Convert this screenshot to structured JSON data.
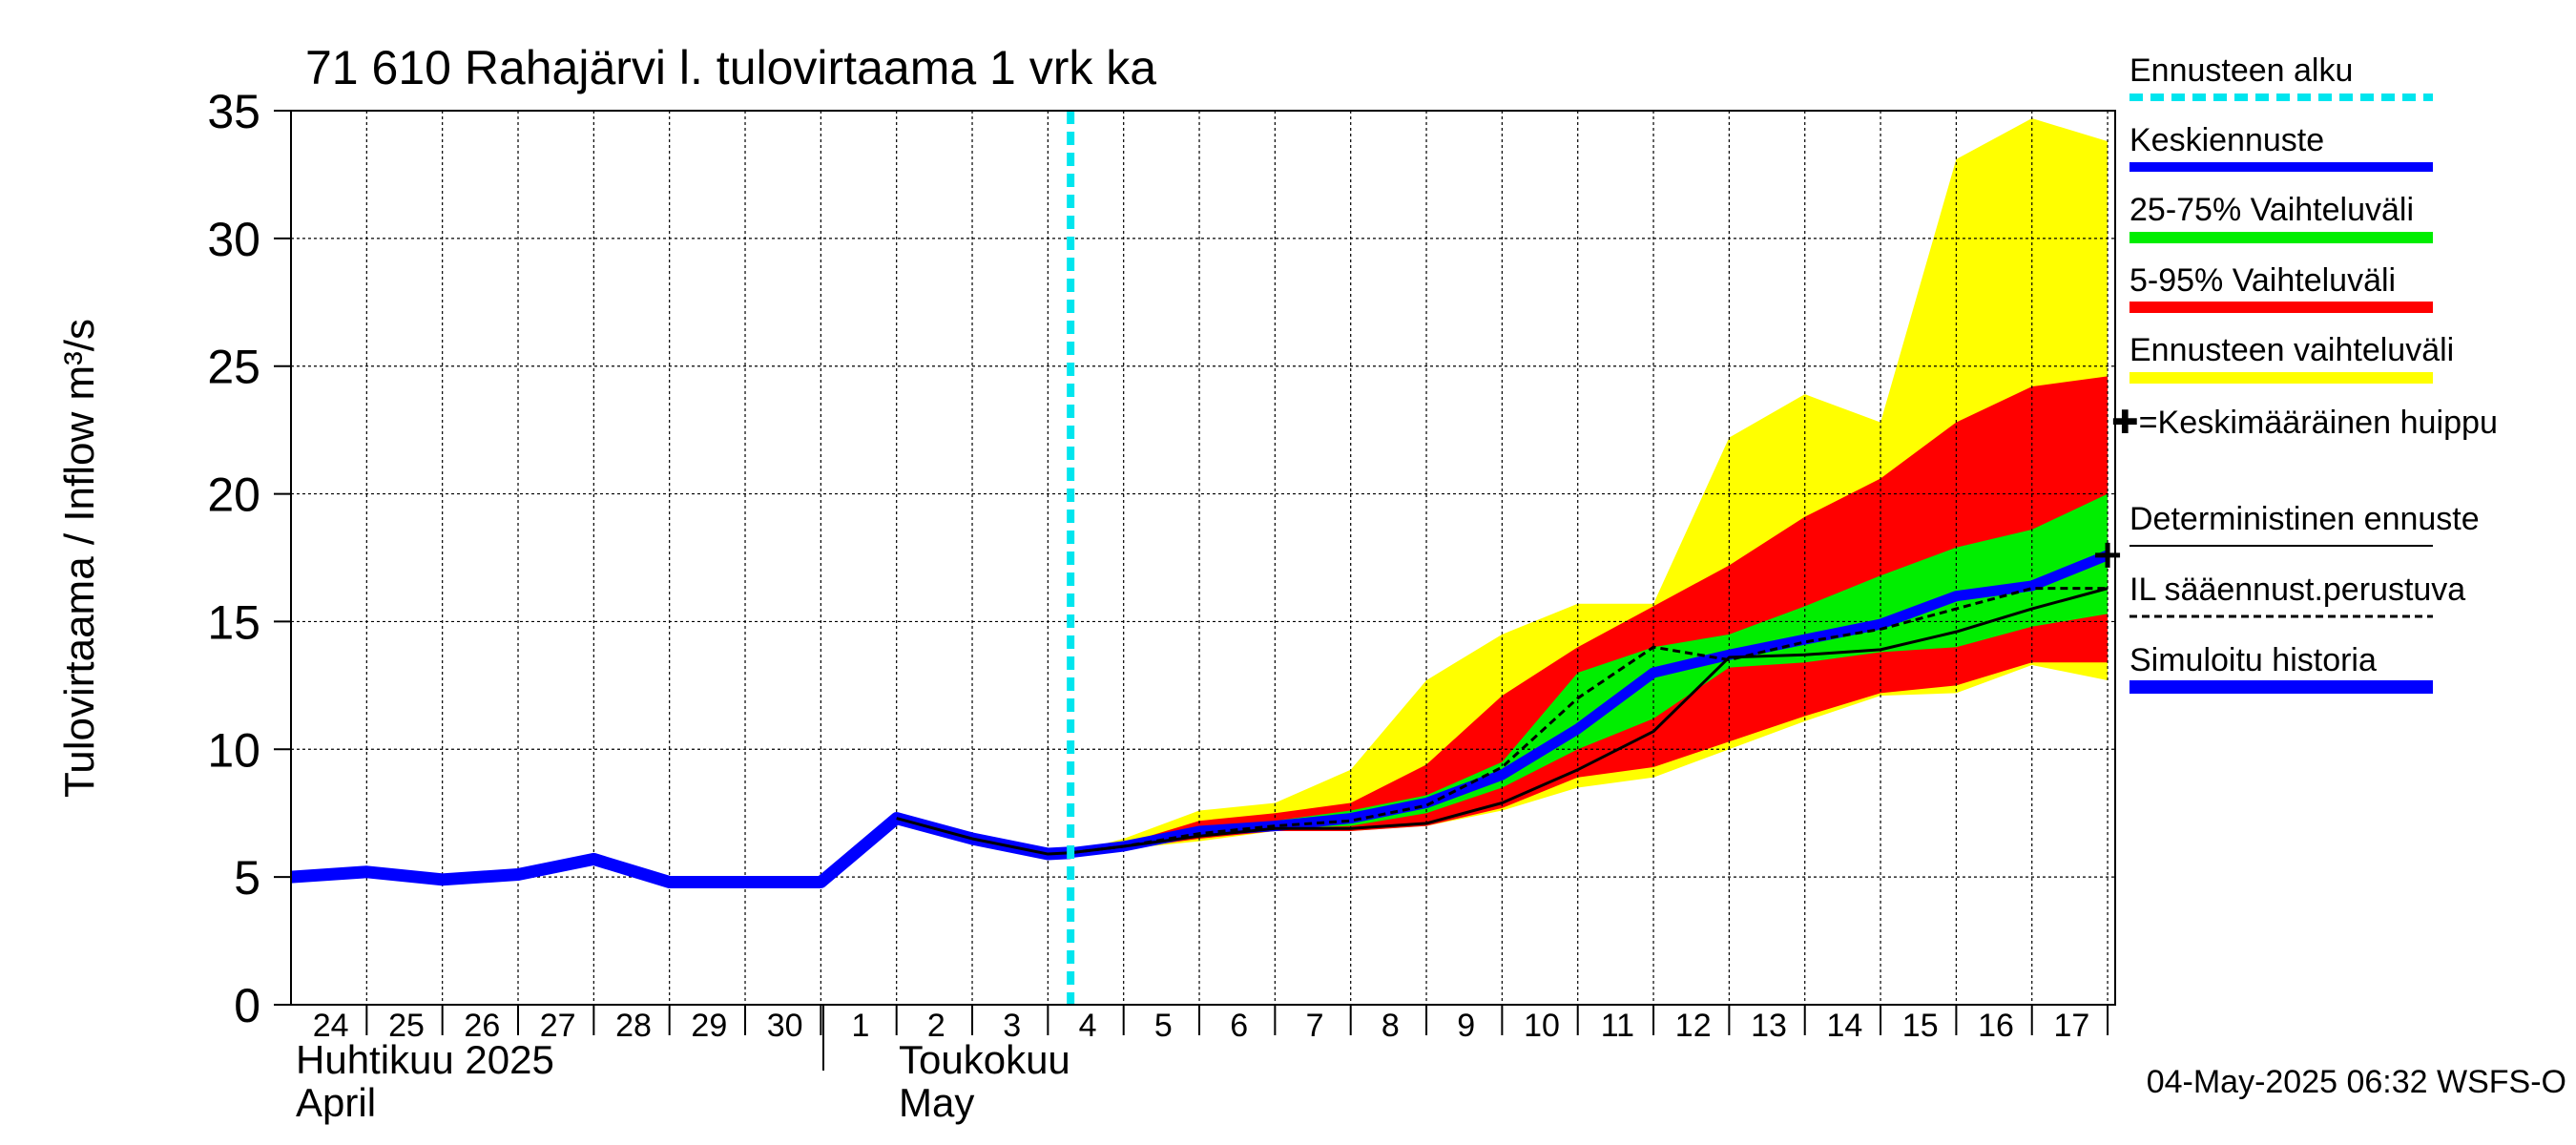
{
  "chart_data": {
    "type": "area",
    "title": "71 610 Rahajärvi l. tulovirtaama 1 vrk ka",
    "ylabel": "Tulovirtaama / Inflow    m³/s",
    "ylim": [
      0,
      35
    ],
    "yticks": [
      0,
      5,
      10,
      15,
      20,
      25,
      30,
      35
    ],
    "xlim": [
      -0.5,
      23.6
    ],
    "grid": true,
    "legend_position": "right",
    "x_day_labels": [
      "24",
      "25",
      "26",
      "27",
      "28",
      "29",
      "30",
      "1",
      "2",
      "3",
      "4",
      "5",
      "6",
      "7",
      "8",
      "9",
      "10",
      "11",
      "12",
      "13",
      "14",
      "15",
      "16",
      "17"
    ],
    "month_labels": [
      {
        "line1": "Huhtikuu  2025",
        "line2": "April",
        "x": -0.5
      },
      {
        "line1": "Toukokuu",
        "line2": "May",
        "x": 7.3
      }
    ],
    "forecast_start_x": 9.8,
    "footer": "04-May-2025 06:32 WSFS-O",
    "colors": {
      "simulated": "#0000ff",
      "mean": "#0000ff",
      "band_25_75": "#00ee00",
      "band_5_95": "#ff0000",
      "band_full": "#ffff00",
      "forecast_start": "#00e5ee",
      "deterministic": "#000000",
      "il": "#000000"
    },
    "legend": [
      {
        "key": "forecast_start",
        "label": "Ennusteen alku",
        "style": "dashed-cyan"
      },
      {
        "key": "mean",
        "label": "Keskiennuste",
        "style": "thick-blue"
      },
      {
        "key": "band_25_75",
        "label": "25-75% Vaihteluväli",
        "style": "thick-green"
      },
      {
        "key": "band_5_95",
        "label": "5-95% Vaihteluväli",
        "style": "thick-red"
      },
      {
        "key": "band_full",
        "label": "Ennusteen vaihteluväli",
        "style": "thick-yellow"
      },
      {
        "key": "peak",
        "label": "✚=Keskimääräinen huippu",
        "style": "text"
      },
      {
        "key": "deterministic",
        "label": "Deterministinen ennuste",
        "style": "thin-black"
      },
      {
        "key": "il",
        "label": "IL sääennust.perustuva",
        "style": "dashed-black"
      },
      {
        "key": "simulated",
        "label": "Simuloitu historia",
        "style": "thick-blue"
      }
    ],
    "series": [
      {
        "name": "Simuloitu historia",
        "x": [
          -0.5,
          0.5,
          1.5,
          2.5,
          3.5,
          4.5,
          5.5,
          6.5,
          7.5,
          8.5,
          9.5,
          9.8
        ],
        "values": [
          5.0,
          5.2,
          4.9,
          5.1,
          5.7,
          4.8,
          4.8,
          4.8,
          7.3,
          6.5,
          5.9,
          5.95
        ]
      },
      {
        "name": "Keskiennuste",
        "x": [
          9.8,
          10.5,
          11.5,
          12.5,
          13.5,
          14.5,
          15.5,
          16.5,
          17.5,
          18.5,
          19.5,
          20.5,
          21.5,
          22.5,
          23.5
        ],
        "values": [
          5.95,
          6.2,
          6.8,
          7.0,
          7.3,
          7.9,
          9.0,
          10.8,
          13.0,
          13.7,
          14.3,
          14.9,
          16.0,
          16.4,
          17.6
        ]
      },
      {
        "name": "Deterministinen ennuste",
        "x": [
          9.8,
          10.5,
          11.5,
          12.5,
          13.5,
          14.5,
          15.5,
          16.5,
          17.5,
          18.5,
          19.5,
          20.5,
          21.5,
          22.5,
          23.5
        ],
        "values": [
          5.95,
          6.2,
          6.6,
          6.9,
          6.9,
          7.1,
          7.9,
          9.2,
          10.7,
          13.6,
          13.7,
          13.9,
          14.6,
          15.5,
          16.3
        ]
      },
      {
        "name": "IL sääennust.perustuva",
        "x": [
          9.8,
          10.5,
          11.5,
          12.5,
          13.5,
          14.5,
          15.5,
          16.5,
          17.5,
          18.5,
          19.5,
          20.5,
          21.5,
          22.5,
          23.5
        ],
        "values": [
          5.95,
          6.2,
          6.7,
          7.0,
          7.2,
          7.8,
          9.3,
          12.0,
          14.0,
          13.5,
          14.2,
          14.7,
          15.5,
          16.3,
          16.3
        ]
      }
    ],
    "bands": [
      {
        "name": "Ennusteen vaihteluväli",
        "x": [
          9.8,
          10.5,
          11.5,
          12.5,
          13.5,
          14.5,
          15.5,
          16.5,
          17.5,
          18.5,
          19.5,
          20.5,
          21.5,
          22.5,
          23.5
        ],
        "low": [
          5.95,
          6.1,
          6.4,
          6.8,
          6.8,
          7.0,
          7.6,
          8.5,
          8.9,
          10.0,
          11.1,
          12.1,
          12.2,
          13.3,
          12.7
        ],
        "high": [
          5.95,
          6.5,
          7.6,
          7.9,
          9.2,
          12.7,
          14.5,
          15.7,
          15.7,
          22.2,
          23.9,
          22.8,
          33.1,
          34.7,
          33.8
        ]
      },
      {
        "name": "5-95% Vaihteluväli",
        "x": [
          9.8,
          10.5,
          11.5,
          12.5,
          13.5,
          14.5,
          15.5,
          16.5,
          17.5,
          18.5,
          19.5,
          20.5,
          21.5,
          22.5,
          23.5
        ],
        "low": [
          5.95,
          6.1,
          6.5,
          6.8,
          6.8,
          7.0,
          7.7,
          8.9,
          9.3,
          10.3,
          11.3,
          12.2,
          12.5,
          13.4,
          13.4
        ],
        "high": [
          5.95,
          6.3,
          7.2,
          7.5,
          7.9,
          9.4,
          12.1,
          14.0,
          15.6,
          17.2,
          19.1,
          20.6,
          22.8,
          24.2,
          24.6
        ]
      },
      {
        "name": "25-75% Vaihteluväli",
        "x": [
          9.8,
          10.5,
          11.5,
          12.5,
          13.5,
          14.5,
          15.5,
          16.5,
          17.5,
          18.5,
          19.5,
          20.5,
          21.5,
          22.5,
          23.5
        ],
        "low": [
          5.95,
          6.2,
          6.6,
          6.9,
          7.0,
          7.5,
          8.5,
          10.0,
          11.2,
          13.2,
          13.4,
          13.8,
          14.0,
          14.8,
          15.3
        ],
        "high": [
          5.95,
          6.3,
          6.9,
          7.2,
          7.6,
          8.2,
          9.5,
          13.0,
          14.0,
          14.5,
          15.6,
          16.8,
          17.9,
          18.6,
          20.0
        ]
      }
    ],
    "peak_marker": {
      "x": 23.5,
      "value": 17.6
    }
  }
}
